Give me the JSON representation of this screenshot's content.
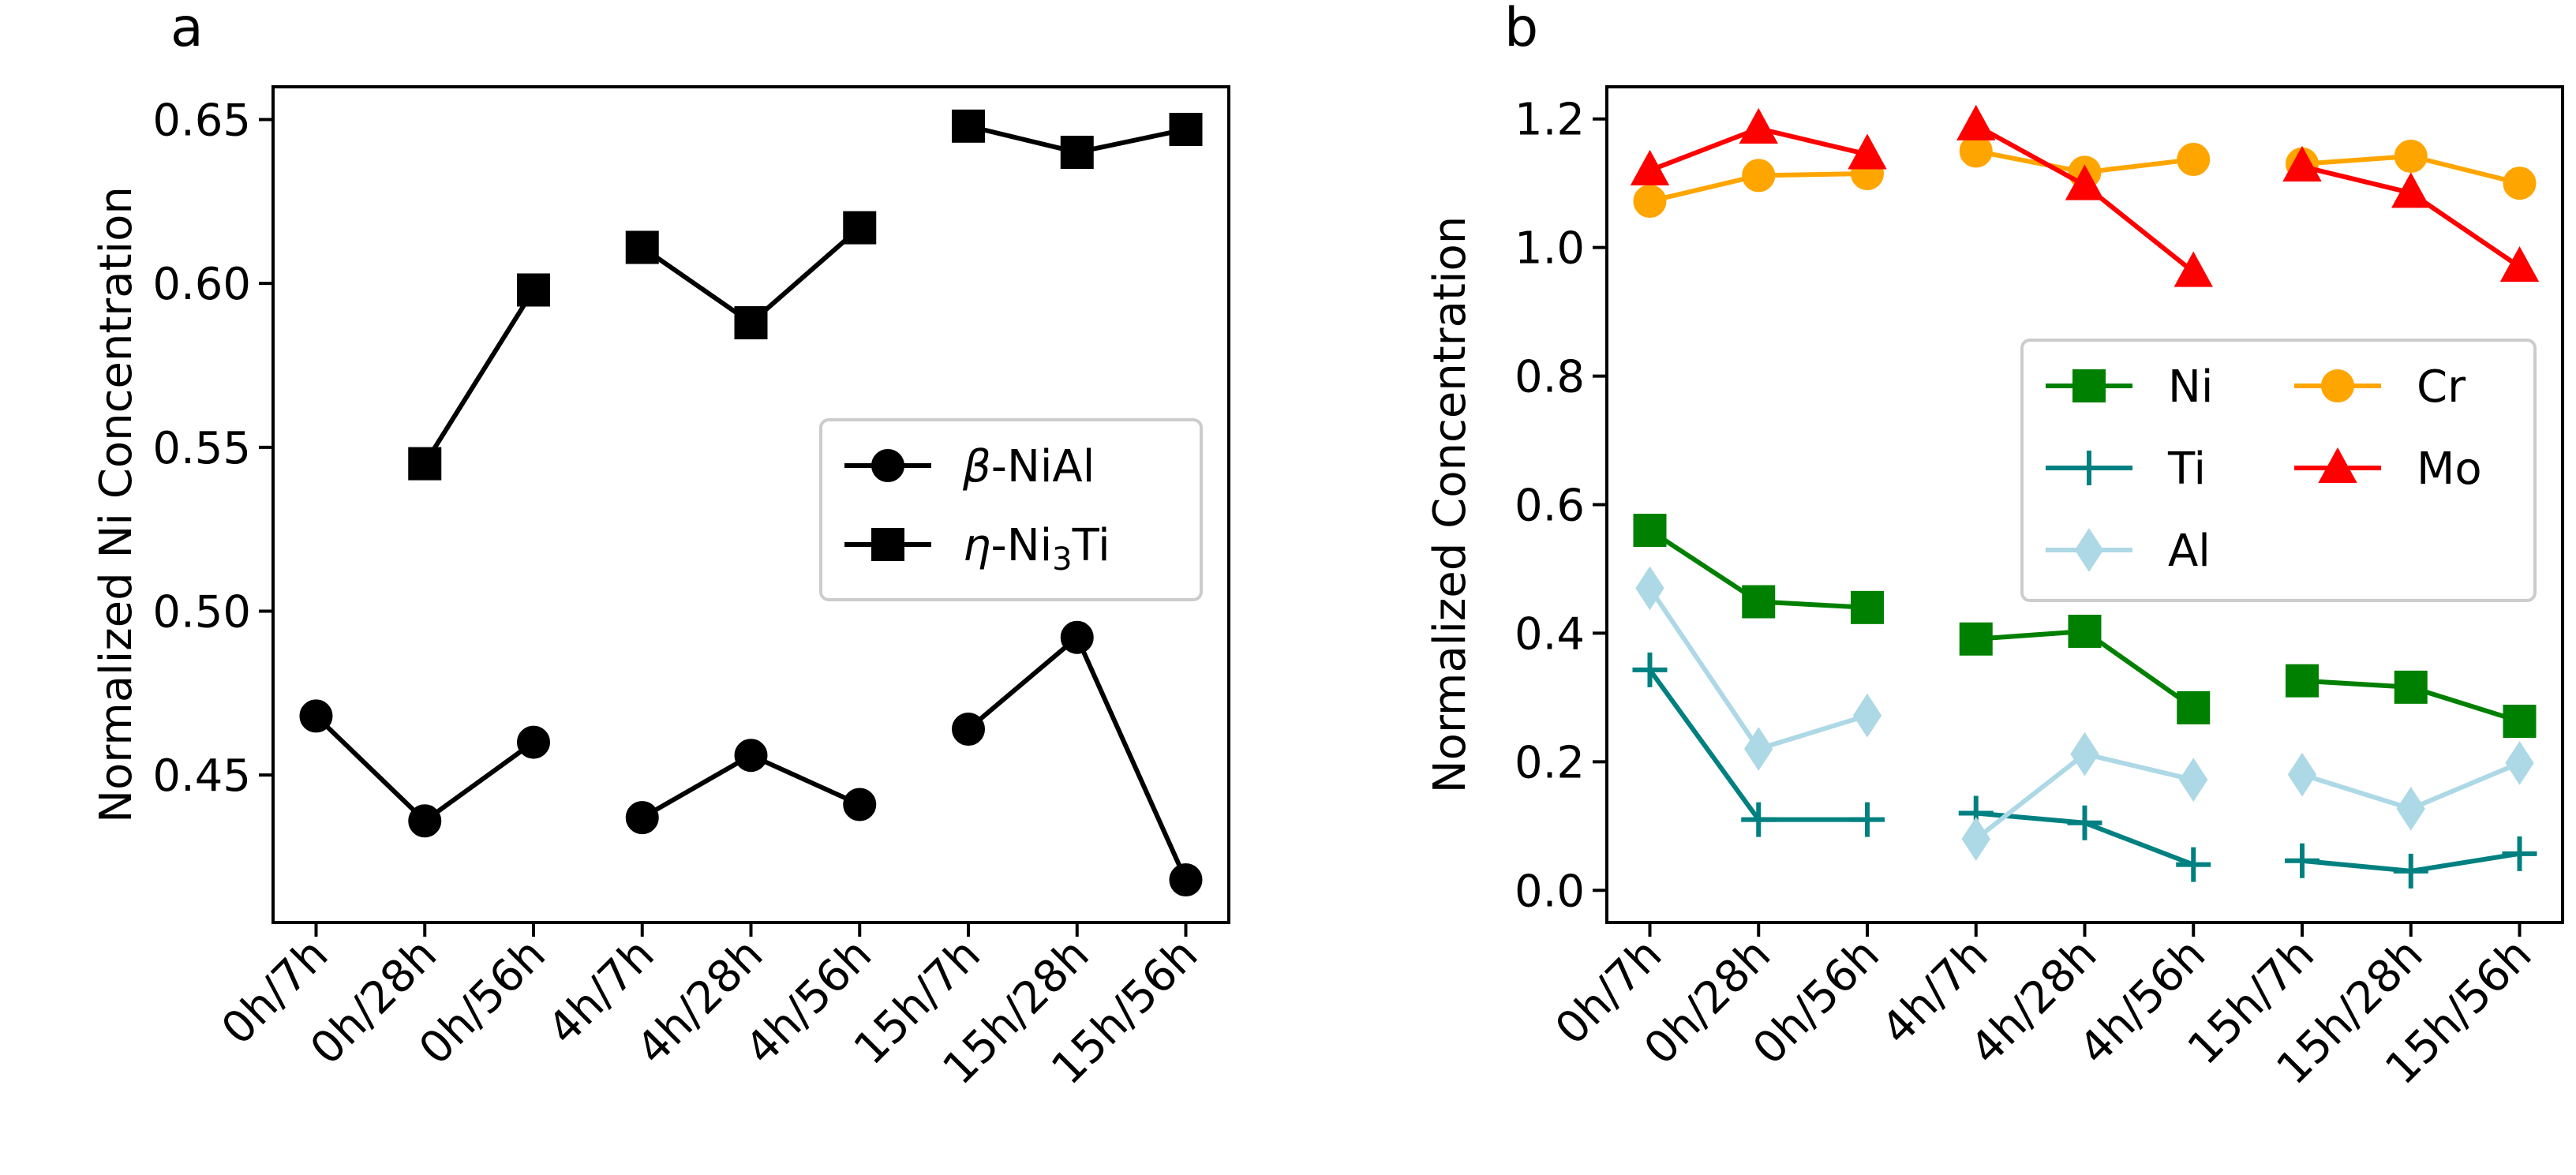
{
  "chart_data": [
    {
      "panel_label": "a",
      "type": "line",
      "categories": [
        "0h/7h",
        "0h/28h",
        "0h/56h",
        "4h/7h",
        "4h/28h",
        "4h/56h",
        "15h/7h",
        "15h/28h",
        "15h/56h"
      ],
      "groups": [
        [
          0,
          1,
          2
        ],
        [
          3,
          4,
          5
        ],
        [
          6,
          7,
          8
        ]
      ],
      "ylabel": "Normalized Ni Concentration",
      "xlabel": "",
      "ylim": [
        0.405,
        0.66
      ],
      "yticks": [
        0.45,
        0.5,
        0.55,
        0.6,
        0.65
      ],
      "ytick_labels": [
        "0.45",
        "0.50",
        "0.55",
        "0.60",
        "0.65"
      ],
      "legend_location": "center-right",
      "series": [
        {
          "name": "β-NiAl",
          "legend_greek": "β",
          "legend_rest": "-NiAl",
          "marker": "circle",
          "color": "#000000",
          "values": [
            0.468,
            0.436,
            0.46,
            0.437,
            0.456,
            0.441,
            0.464,
            0.492,
            0.418
          ]
        },
        {
          "name": "η-Ni3Ti",
          "legend_greek": "η",
          "legend_rest": "-Ni",
          "legend_sub": "3",
          "legend_tail": "Ti",
          "marker": "square",
          "color": "#000000",
          "values": [
            null,
            0.545,
            0.598,
            0.611,
            0.588,
            0.617,
            0.648,
            0.64,
            0.647
          ]
        }
      ]
    },
    {
      "panel_label": "b",
      "type": "line",
      "categories": [
        "0h/7h",
        "0h/28h",
        "0h/56h",
        "4h/7h",
        "4h/28h",
        "4h/56h",
        "15h/7h",
        "15h/28h",
        "15h/56h"
      ],
      "groups": [
        [
          0,
          1,
          2
        ],
        [
          3,
          4,
          5
        ],
        [
          6,
          7,
          8
        ]
      ],
      "ylabel": "Normalized Concentration",
      "xlabel": "",
      "ylim": [
        -0.05,
        1.25
      ],
      "yticks": [
        0.0,
        0.2,
        0.4,
        0.6,
        0.8,
        1.0,
        1.2
      ],
      "ytick_labels": [
        "0.0",
        "0.2",
        "0.4",
        "0.6",
        "0.8",
        "1.0",
        "1.2"
      ],
      "legend_location": "center-right",
      "series": [
        {
          "name": "Ni",
          "marker": "square",
          "color": "#008000",
          "values": [
            0.56,
            0.449,
            0.44,
            0.391,
            0.403,
            0.284,
            0.326,
            0.316,
            0.263
          ]
        },
        {
          "name": "Ti",
          "marker": "plus",
          "color": "#008080",
          "values": [
            0.343,
            0.11,
            0.11,
            0.12,
            0.105,
            0.04,
            0.046,
            0.03,
            0.057
          ]
        },
        {
          "name": "Al",
          "marker": "thin-diamond",
          "color": "#add8e6",
          "values": [
            0.47,
            0.22,
            0.272,
            0.08,
            0.212,
            0.172,
            0.18,
            0.127,
            0.198
          ]
        },
        {
          "name": "Cr",
          "marker": "circle",
          "color": "#ffa500",
          "values": [
            1.072,
            1.112,
            1.115,
            1.15,
            1.117,
            1.137,
            1.13,
            1.142,
            1.1
          ]
        },
        {
          "name": "Mo",
          "marker": "triangle",
          "color": "#ff0000",
          "values": [
            1.12,
            1.185,
            1.145,
            1.19,
            1.097,
            0.962,
            1.126,
            1.085,
            0.97
          ]
        }
      ],
      "legend_order": [
        [
          "Ni",
          "Ti",
          "Al"
        ],
        [
          "Cr",
          "Mo"
        ]
      ]
    }
  ]
}
